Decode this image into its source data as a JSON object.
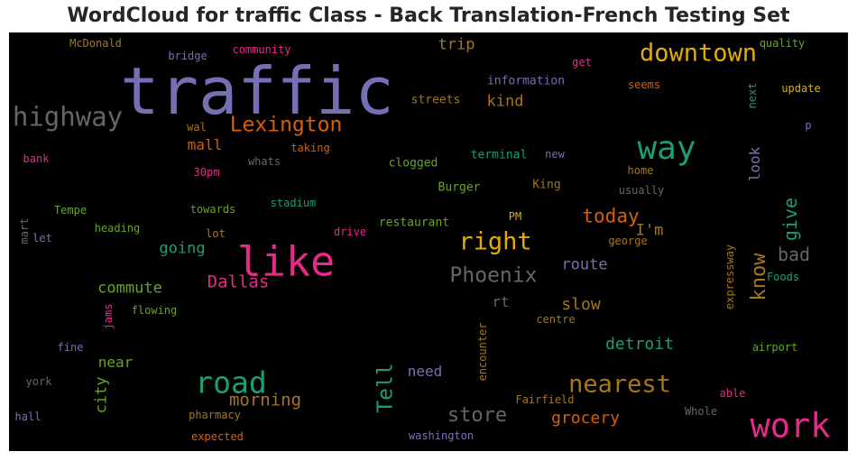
{
  "chart_data": {
    "type": "wordcloud",
    "title": "WordCloud for traffic Class - Back Translation-French Testing Set",
    "background": "#000000",
    "colormap": "Dark2",
    "words": [
      {
        "text": "traffic",
        "weight": 1.0,
        "color": "#7570b3",
        "vertical": false
      },
      {
        "text": "like",
        "weight": 0.62,
        "color": "#e7298a",
        "vertical": false
      },
      {
        "text": "work",
        "weight": 0.52,
        "color": "#e7298a",
        "vertical": false
      },
      {
        "text": "way",
        "weight": 0.5,
        "color": "#1b9e77",
        "vertical": false
      },
      {
        "text": "road",
        "weight": 0.46,
        "color": "#1b9e77",
        "vertical": false
      },
      {
        "text": "highway",
        "weight": 0.4,
        "color": "#666666",
        "vertical": false
      },
      {
        "text": "downtown",
        "weight": 0.38,
        "color": "#e6ab02",
        "vertical": false
      },
      {
        "text": "nearest",
        "weight": 0.38,
        "color": "#a6761d",
        "vertical": false
      },
      {
        "text": "right",
        "weight": 0.37,
        "color": "#e6ab02",
        "vertical": false
      },
      {
        "text": "Phoenix",
        "weight": 0.32,
        "color": "#666666",
        "vertical": false
      },
      {
        "text": "Lexington",
        "weight": 0.32,
        "color": "#d95f02",
        "vertical": false
      },
      {
        "text": "Tell",
        "weight": 0.32,
        "color": "#1b9e77",
        "vertical": true
      },
      {
        "text": "store",
        "weight": 0.3,
        "color": "#666666",
        "vertical": false
      },
      {
        "text": "know",
        "weight": 0.3,
        "color": "#a6761d",
        "vertical": true
      },
      {
        "text": "today",
        "weight": 0.29,
        "color": "#d95f02",
        "vertical": false
      },
      {
        "text": "give",
        "weight": 0.28,
        "color": "#1b9e77",
        "vertical": true
      },
      {
        "text": "bad",
        "weight": 0.28,
        "color": "#666666",
        "vertical": false
      },
      {
        "text": "Dallas",
        "weight": 0.26,
        "color": "#e7298a",
        "vertical": false
      },
      {
        "text": "morning",
        "weight": 0.26,
        "color": "#a6761d",
        "vertical": false
      },
      {
        "text": "grocery",
        "weight": 0.25,
        "color": "#d95f02",
        "vertical": false
      },
      {
        "text": "detroit",
        "weight": 0.25,
        "color": "#1b9e77",
        "vertical": false
      },
      {
        "text": "slow",
        "weight": 0.25,
        "color": "#a6761d",
        "vertical": false
      },
      {
        "text": "going",
        "weight": 0.24,
        "color": "#1b9e77",
        "vertical": false
      },
      {
        "text": "city",
        "weight": 0.24,
        "color": "#66a61e",
        "vertical": true
      },
      {
        "text": "I'm",
        "weight": 0.24,
        "color": "#a6761d",
        "vertical": false
      },
      {
        "text": "route",
        "weight": 0.23,
        "color": "#7570b3",
        "vertical": false
      },
      {
        "text": "commute",
        "weight": 0.23,
        "color": "#66a61e",
        "vertical": false
      },
      {
        "text": "trip",
        "weight": 0.23,
        "color": "#a6761d",
        "vertical": false
      },
      {
        "text": "kind",
        "weight": 0.23,
        "color": "#a6761d",
        "vertical": false
      },
      {
        "text": "mall",
        "weight": 0.22,
        "color": "#d95f02",
        "vertical": false
      },
      {
        "text": "look",
        "weight": 0.22,
        "color": "#7570b3",
        "vertical": true
      },
      {
        "text": "rt",
        "weight": 0.22,
        "color": "#666666",
        "vertical": false
      },
      {
        "text": "need",
        "weight": 0.22,
        "color": "#7570b3",
        "vertical": false
      },
      {
        "text": "near",
        "weight": 0.22,
        "color": "#66a61e",
        "vertical": false
      },
      {
        "text": "information",
        "weight": 0.18,
        "color": "#7570b3",
        "vertical": false
      },
      {
        "text": "streets",
        "weight": 0.18,
        "color": "#a6761d",
        "vertical": false
      },
      {
        "text": "clogged",
        "weight": 0.18,
        "color": "#66a61e",
        "vertical": false
      },
      {
        "text": "terminal",
        "weight": 0.18,
        "color": "#1b9e77",
        "vertical": false
      },
      {
        "text": "Burger",
        "weight": 0.18,
        "color": "#66a61e",
        "vertical": false
      },
      {
        "text": "King",
        "weight": 0.18,
        "color": "#a6761d",
        "vertical": false
      },
      {
        "text": "restaurant",
        "weight": 0.18,
        "color": "#66a61e",
        "vertical": false
      },
      {
        "text": "george",
        "weight": 0.17,
        "color": "#a6761d",
        "vertical": false
      },
      {
        "text": "Fairfield",
        "weight": 0.17,
        "color": "#a6761d",
        "vertical": false
      },
      {
        "text": "encounter",
        "weight": 0.17,
        "color": "#a6761d",
        "vertical": true
      },
      {
        "text": "washington",
        "weight": 0.17,
        "color": "#7570b3",
        "vertical": false
      },
      {
        "text": "pharmacy",
        "weight": 0.17,
        "color": "#a6761d",
        "vertical": false
      },
      {
        "text": "expected",
        "weight": 0.17,
        "color": "#d95f02",
        "vertical": false
      },
      {
        "text": "Whole",
        "weight": 0.17,
        "color": "#666666",
        "vertical": false
      },
      {
        "text": "airport",
        "weight": 0.17,
        "color": "#66a61e",
        "vertical": false
      },
      {
        "text": "Foods",
        "weight": 0.17,
        "color": "#1b9e77",
        "vertical": false
      },
      {
        "text": "expressway",
        "weight": 0.17,
        "color": "#a6761d",
        "vertical": true
      },
      {
        "text": "centre",
        "weight": 0.16,
        "color": "#a6761d",
        "vertical": false
      },
      {
        "text": "usually",
        "weight": 0.17,
        "color": "#666666",
        "vertical": false
      },
      {
        "text": "home",
        "weight": 0.16,
        "color": "#a6761d",
        "vertical": false
      },
      {
        "text": "new",
        "weight": 0.17,
        "color": "#7570b3",
        "vertical": false
      },
      {
        "text": "PM",
        "weight": 0.16,
        "color": "#e6ab02",
        "vertical": false
      },
      {
        "text": "drive",
        "weight": 0.17,
        "color": "#e7298a",
        "vertical": false
      },
      {
        "text": "lot",
        "weight": 0.16,
        "color": "#a6761d",
        "vertical": false
      },
      {
        "text": "stadium",
        "weight": 0.17,
        "color": "#1b9e77",
        "vertical": false
      },
      {
        "text": "towards",
        "weight": 0.17,
        "color": "#66a61e",
        "vertical": false
      },
      {
        "text": "heading",
        "weight": 0.17,
        "color": "#66a61e",
        "vertical": false
      },
      {
        "text": "Tempe",
        "weight": 0.17,
        "color": "#66a61e",
        "vertical": false
      },
      {
        "text": "let",
        "weight": 0.16,
        "color": "#7570b3",
        "vertical": false
      },
      {
        "text": "mart",
        "weight": 0.16,
        "color": "#666666",
        "vertical": true
      },
      {
        "text": "bank",
        "weight": 0.16,
        "color": "#e7298a",
        "vertical": false
      },
      {
        "text": "whats",
        "weight": 0.17,
        "color": "#666666",
        "vertical": false
      },
      {
        "text": "30pm",
        "weight": 0.16,
        "color": "#e7298a",
        "vertical": false
      },
      {
        "text": "taking",
        "weight": 0.17,
        "color": "#d95f02",
        "vertical": false
      },
      {
        "text": "wal",
        "weight": 0.16,
        "color": "#a6761d",
        "vertical": false
      },
      {
        "text": "jams",
        "weight": 0.16,
        "color": "#e7298a",
        "vertical": true
      },
      {
        "text": "flowing",
        "weight": 0.17,
        "color": "#66a61e",
        "vertical": false
      },
      {
        "text": "fine",
        "weight": 0.16,
        "color": "#7570b3",
        "vertical": false
      },
      {
        "text": "york",
        "weight": 0.16,
        "color": "#666666",
        "vertical": false
      },
      {
        "text": "hall",
        "weight": 0.16,
        "color": "#7570b3",
        "vertical": false
      },
      {
        "text": "McDonald",
        "weight": 0.17,
        "color": "#a6761d",
        "vertical": false
      },
      {
        "text": "bridge",
        "weight": 0.17,
        "color": "#7570b3",
        "vertical": false
      },
      {
        "text": "community",
        "weight": 0.17,
        "color": "#e7298a",
        "vertical": false
      },
      {
        "text": "get",
        "weight": 0.16,
        "color": "#e7298a",
        "vertical": false
      },
      {
        "text": "seems",
        "weight": 0.17,
        "color": "#d95f02",
        "vertical": false
      },
      {
        "text": "quality",
        "weight": 0.17,
        "color": "#66a61e",
        "vertical": false
      },
      {
        "text": "update",
        "weight": 0.17,
        "color": "#e6ab02",
        "vertical": false
      },
      {
        "text": "next",
        "weight": 0.16,
        "color": "#1b9e77",
        "vertical": true
      },
      {
        "text": "p",
        "weight": 0.16,
        "color": "#7570b3",
        "vertical": false
      },
      {
        "text": "able",
        "weight": 0.16,
        "color": "#e7298a",
        "vertical": false
      }
    ]
  }
}
